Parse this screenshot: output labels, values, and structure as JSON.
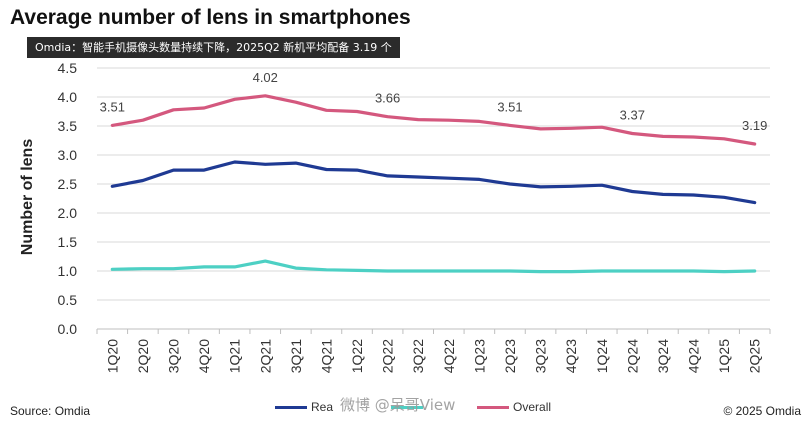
{
  "title": "Average number of lens in smartphones",
  "banner": "Omdia：智能手机摄像头数量持续下降，2025Q2 新机平均配备 3.19 个",
  "footer": {
    "source": "Source: Omdia",
    "copyright": "© 2025 Omdia"
  },
  "watermark": "微博 @呆哥View",
  "legend_labels": [
    "Rea",
    "",
    "Overall"
  ],
  "chart_data": {
    "type": "line",
    "title": "Average number of lens in smartphones",
    "xlabel": "",
    "ylabel": "Number of lens",
    "ylim": [
      0.0,
      4.5
    ],
    "yticks": [
      "0.0",
      "0.5",
      "1.0",
      "1.5",
      "2.0",
      "2.5",
      "3.0",
      "3.5",
      "4.0",
      "4.5"
    ],
    "grid": "horizontal",
    "legend_position": "bottom",
    "categories": [
      "1Q20",
      "2Q20",
      "3Q20",
      "4Q20",
      "1Q21",
      "2Q21",
      "3Q21",
      "4Q21",
      "1Q22",
      "2Q22",
      "3Q22",
      "4Q22",
      "1Q23",
      "2Q23",
      "3Q23",
      "4Q23",
      "1Q24",
      "2Q24",
      "3Q24",
      "4Q24",
      "1Q25",
      "2Q25"
    ],
    "series": [
      {
        "name": "Rea",
        "color": "#1f3a93",
        "values": [
          2.46,
          2.56,
          2.74,
          2.74,
          2.88,
          2.84,
          2.86,
          2.75,
          2.74,
          2.64,
          2.62,
          2.6,
          2.58,
          2.5,
          2.45,
          2.46,
          2.48,
          2.37,
          2.32,
          2.31,
          2.27,
          2.18
        ]
      },
      {
        "name": "",
        "color": "#4dd0c4",
        "values": [
          1.03,
          1.04,
          1.04,
          1.07,
          1.07,
          1.17,
          1.05,
          1.02,
          1.01,
          1.0,
          1.0,
          1.0,
          1.0,
          1.0,
          0.99,
          0.99,
          1.0,
          1.0,
          1.0,
          1.0,
          0.99,
          1.0
        ]
      },
      {
        "name": "Overall",
        "color": "#d4587e",
        "values": [
          3.51,
          3.6,
          3.78,
          3.81,
          3.96,
          4.02,
          3.91,
          3.77,
          3.75,
          3.66,
          3.61,
          3.6,
          3.58,
          3.51,
          3.45,
          3.46,
          3.48,
          3.37,
          3.32,
          3.31,
          3.28,
          3.19
        ]
      }
    ],
    "annotations": [
      {
        "series": "Overall",
        "category": "1Q20",
        "text": "3.51"
      },
      {
        "series": "Overall",
        "category": "2Q21",
        "text": "4.02"
      },
      {
        "series": "Overall",
        "category": "2Q22",
        "text": "3.66"
      },
      {
        "series": "Overall",
        "category": "2Q23",
        "text": "3.51"
      },
      {
        "series": "Overall",
        "category": "2Q24",
        "text": "3.37"
      },
      {
        "series": "Overall",
        "category": "2Q25",
        "text": "3.19"
      }
    ]
  }
}
